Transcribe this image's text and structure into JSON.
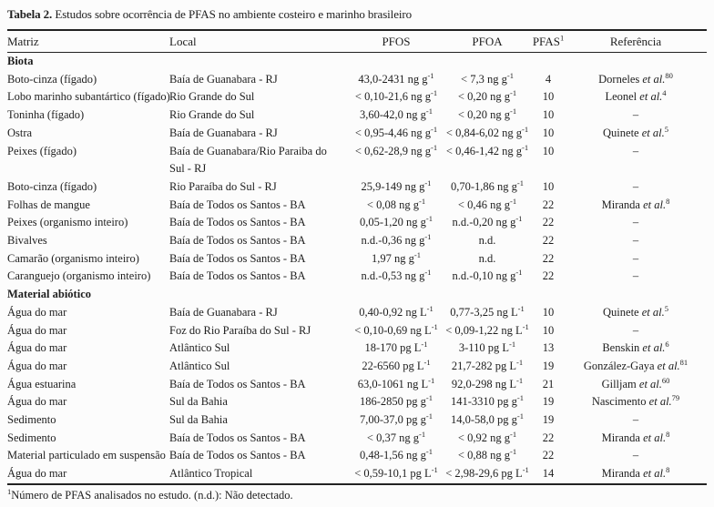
{
  "title": {
    "bold": "Tabela 2.",
    "rest": " Estudos sobre ocorrência de PFAS no ambiente costeiro e marinho brasileiro"
  },
  "table": {
    "columns": [
      {
        "key": "matriz",
        "label": "Matriz"
      },
      {
        "key": "local",
        "label": "Local"
      },
      {
        "key": "pfos",
        "label": "PFOS"
      },
      {
        "key": "pfoa",
        "label": "PFOA"
      },
      {
        "key": "pfas",
        "label": "PFAS",
        "sup": "1"
      },
      {
        "key": "ref",
        "label": "Referência"
      }
    ],
    "sections": [
      {
        "label": "Biota",
        "rows": [
          {
            "matriz": "Boto-cinza (fígado)",
            "local": "Baía de Guanabara - RJ",
            "pfos": "43,0-2431 ng g^-1",
            "pfoa": "< 7,3 ng g^-1",
            "pfas": "4",
            "ref": "Dorneles",
            "ref_italic": "et al.",
            "ref_sup": "80"
          },
          {
            "matriz": "Lobo marinho subantártico (fígado)",
            "local": "Rio Grande do Sul",
            "pfos": "< 0,10-21,6 ng g^-1",
            "pfoa": "< 0,20 ng g^-1",
            "pfas": "10",
            "ref": "Leonel",
            "ref_italic": "et al.",
            "ref_sup": "4"
          },
          {
            "matriz": "Toninha (fígado)",
            "local": "Rio Grande do Sul",
            "pfos": "3,60-42,0 ng g^-1",
            "pfoa": "< 0,20 ng g^-1",
            "pfas": "10",
            "ref": "–",
            "ref_italic": "",
            "ref_sup": ""
          },
          {
            "matriz": "Ostra",
            "local": "Baía de Guanabara - RJ",
            "pfos": "< 0,95-4,46 ng g^-1",
            "pfoa": "< 0,84-6,02 ng g^-1",
            "pfas": "10",
            "ref": "Quinete",
            "ref_italic": "et al.",
            "ref_sup": "5"
          },
          {
            "matriz": "Peixes (fígado)",
            "local": "Baía de Guanabara/Rio Paraiba do\nSul - RJ",
            "pfos": "< 0,62-28,9 ng g^-1",
            "pfoa": "< 0,46-1,42 ng g^-1",
            "pfas": "10",
            "ref": "–",
            "ref_italic": "",
            "ref_sup": ""
          },
          {
            "matriz": "Boto-cinza (fígado)",
            "local": "Rio Paraíba do Sul - RJ",
            "pfos": "25,9-149 ng g^-1",
            "pfoa": "0,70-1,86 ng g^-1",
            "pfas": "10",
            "ref": "–",
            "ref_italic": "",
            "ref_sup": ""
          },
          {
            "matriz": "Folhas de mangue",
            "local": "Baía de Todos os Santos - BA",
            "pfos": "< 0,08 ng g^-1",
            "pfoa": "< 0,46 ng g^-1",
            "pfas": "22",
            "ref": "Miranda",
            "ref_italic": "et al.",
            "ref_sup": "8"
          },
          {
            "matriz": "Peixes (organismo inteiro)",
            "local": "Baía de Todos os Santos - BA",
            "pfos": "0,05-1,20 ng g^-1",
            "pfoa": "n.d.-0,20 ng g^-1",
            "pfas": "22",
            "ref": "–",
            "ref_italic": "",
            "ref_sup": ""
          },
          {
            "matriz": "Bivalves",
            "local": "Baía de Todos os Santos - BA",
            "pfos": "n.d.-0,36 ng g^-1",
            "pfoa": "n.d.",
            "pfas": "22",
            "ref": "–",
            "ref_italic": "",
            "ref_sup": ""
          },
          {
            "matriz": "Camarão (organismo inteiro)",
            "local": "Baía de Todos os Santos - BA",
            "pfos": "1,97 ng g^-1",
            "pfoa": "n.d.",
            "pfas": "22",
            "ref": "–",
            "ref_italic": "",
            "ref_sup": ""
          },
          {
            "matriz": "Caranguejo (organismo inteiro)",
            "local": "Baía de Todos os Santos - BA",
            "pfos": "n.d.-0,53 ng g^-1",
            "pfoa": "n.d.-0,10 ng g^-1",
            "pfas": "22",
            "ref": "–",
            "ref_italic": "",
            "ref_sup": ""
          }
        ]
      },
      {
        "label": "Material abiótico",
        "rows": [
          {
            "matriz": "Água do mar",
            "local": "Baía de Guanabara - RJ",
            "pfos": "0,40-0,92 ng L^-1",
            "pfoa": "0,77-3,25 ng L^-1",
            "pfas": "10",
            "ref": "Quinete",
            "ref_italic": "et al.",
            "ref_sup": "5"
          },
          {
            "matriz": "Água do mar",
            "local": "Foz do Rio Paraíba do Sul - RJ",
            "pfos": "< 0,10-0,69 ng L^-1",
            "pfoa": "< 0,09-1,22 ng L^-1",
            "pfas": "10",
            "ref": "–",
            "ref_italic": "",
            "ref_sup": ""
          },
          {
            "matriz": "Água do mar",
            "local": "Atlântico Sul",
            "pfos": "18-170 pg L^-1",
            "pfoa": "3-110 pg L^-1",
            "pfas": "13",
            "ref": "Benskin",
            "ref_italic": "et al.",
            "ref_sup": "6"
          },
          {
            "matriz": "Água do mar",
            "local": "Atlântico Sul",
            "pfos": "22-6560 pg L^-1",
            "pfoa": "21,7-282 pg L^-1",
            "pfas": "19",
            "ref": "González-Gaya",
            "ref_italic": "et al.",
            "ref_sup": "81"
          },
          {
            "matriz": "Água estuarina",
            "local": "Baía de Todos os Santos - BA",
            "pfos": "63,0-1061 ng L^-1",
            "pfoa": "92,0-298 ng L^-1",
            "pfas": "21",
            "ref": "Gilljam",
            "ref_italic": "et al.",
            "ref_sup": "60"
          },
          {
            "matriz": "Água do mar",
            "local": "Sul da Bahia",
            "pfos": "186-2850 pg g^-1",
            "pfoa": "141-3310 pg g^-1",
            "pfas": "19",
            "ref": "Nascimento",
            "ref_italic": "et al.",
            "ref_sup": "79"
          },
          {
            "matriz": "Sedimento",
            "local": "Sul da Bahia",
            "pfos": "7,00-37,0 pg g^-1",
            "pfoa": "14,0-58,0 pg g^-1",
            "pfas": "19",
            "ref": "–",
            "ref_italic": "",
            "ref_sup": ""
          },
          {
            "matriz": "Sedimento",
            "local": "Baía de Todos os Santos - BA",
            "pfos": "< 0,37 ng g^-1",
            "pfoa": "< 0,92 ng g^-1",
            "pfas": "22",
            "ref": "Miranda",
            "ref_italic": "et al.",
            "ref_sup": "8"
          },
          {
            "matriz": "Material particulado em suspensão",
            "local": "Baía de Todos os Santos - BA",
            "pfos": "0,48-1,56 ng g^-1",
            "pfoa": "< 0,88 ng g^-1",
            "pfas": "22",
            "ref": "–",
            "ref_italic": "",
            "ref_sup": ""
          },
          {
            "matriz": "Água do mar",
            "local": "Atlântico Tropical",
            "pfos": "< 0,59-10,1 pg L^-1",
            "pfoa": "< 2,98-29,6 pg L^-1",
            "pfas": "14",
            "ref": "Miranda",
            "ref_italic": "et al.",
            "ref_sup": "8"
          }
        ]
      }
    ]
  },
  "footnote": {
    "sup": "1",
    "text": "Número de PFAS analisados no estudo. (n.d.): Não detectado."
  }
}
